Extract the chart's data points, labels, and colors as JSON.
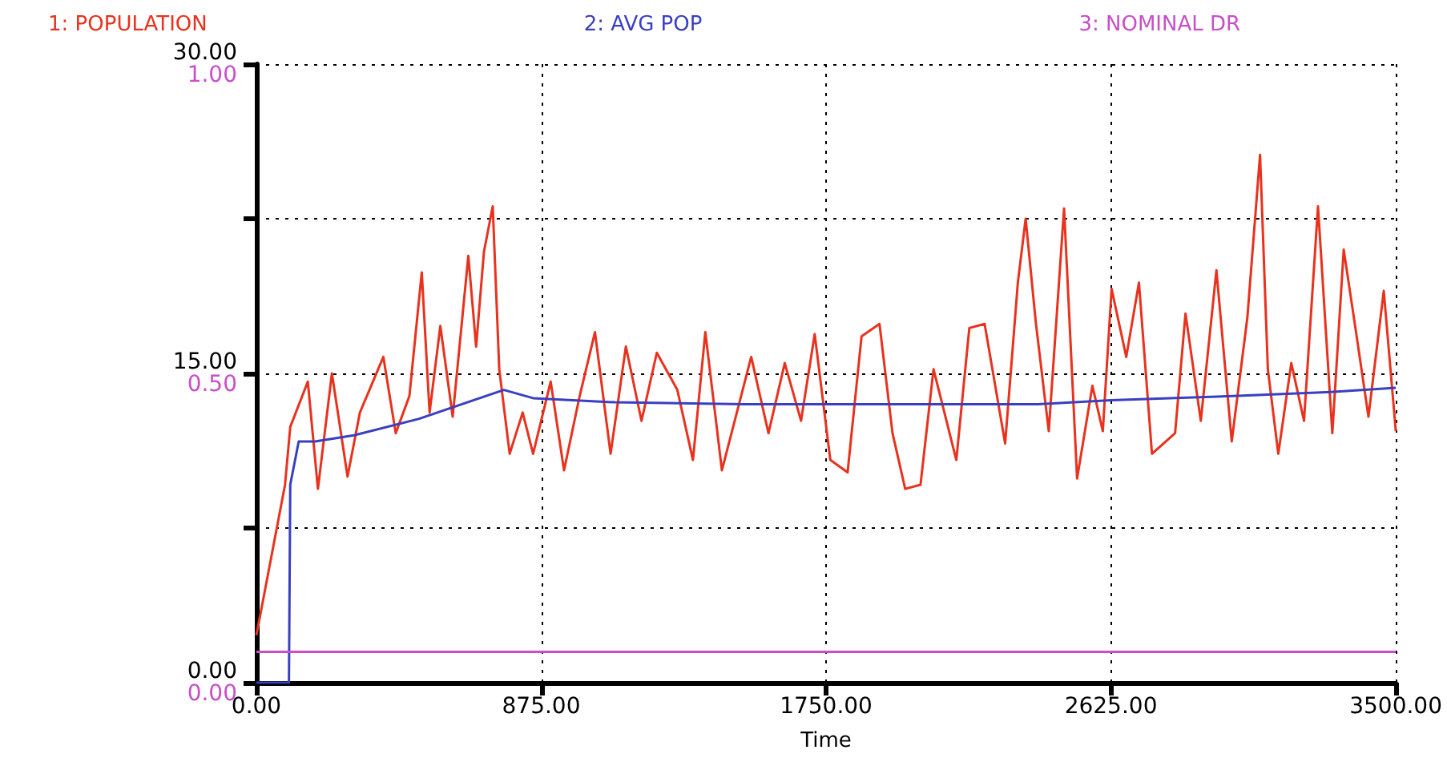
{
  "chart_data": {
    "type": "line",
    "xlabel": "Time",
    "legend": "top",
    "grid": true,
    "marker": "none",
    "line_style": "solid",
    "xlim": [
      0,
      3500
    ],
    "xticks": [
      {
        "value": 0,
        "label": "0.00"
      },
      {
        "value": 875,
        "label": "875.00"
      },
      {
        "value": 1750,
        "label": "1750.00"
      },
      {
        "value": 2625,
        "label": "2625.00"
      },
      {
        "value": 3500,
        "label": "3500.00"
      }
    ],
    "ylim": [
      0,
      30
    ],
    "yticks": [
      {
        "value": 0,
        "label": "0.00"
      },
      {
        "value": 7.5,
        "label": null
      },
      {
        "value": 15,
        "label": "15.00"
      },
      {
        "value": 22.5,
        "label": null
      },
      {
        "value": 30,
        "label": "30.00"
      }
    ],
    "y2lim": [
      0,
      1
    ],
    "y2ticks": [
      {
        "value": 0,
        "label": "0.00"
      },
      {
        "value": 0.5,
        "label": "0.50"
      },
      {
        "value": 1,
        "label": "1.00"
      }
    ],
    "series": [
      {
        "name": "1: POPULATION",
        "color": "#e8321e",
        "x": [
          0,
          88,
          104,
          158,
          189,
          232,
          280,
          318,
          390,
          428,
          470,
          508,
          532,
          565,
          603,
          651,
          675,
          699,
          726,
          746,
          778,
          818,
          850,
          904,
          945,
          993,
          1040,
          1088,
          1135,
          1183,
          1230,
          1293,
          1341,
          1379,
          1430,
          1520,
          1573,
          1623,
          1673,
          1715,
          1763,
          1816,
          1859,
          1914,
          1954,
          1993,
          2040,
          2080,
          2150,
          2190,
          2237,
          2300,
          2339,
          2363,
          2394,
          2434,
          2481,
          2521,
          2568,
          2600,
          2627,
          2672,
          2711,
          2751,
          2822,
          2854,
          2901,
          2949,
          2996,
          3044,
          3083,
          3107,
          3139,
          3179,
          3218,
          3261,
          3305,
          3340,
          3376,
          3416,
          3463,
          3500
        ],
        "values": [
          2.3,
          9.6,
          12.4,
          14.6,
          9.4,
          15.0,
          10.0,
          13.1,
          15.8,
          12.1,
          13.9,
          19.9,
          13.1,
          17.3,
          12.9,
          20.7,
          16.3,
          20.9,
          23.1,
          15.2,
          11.1,
          13.1,
          11.1,
          14.6,
          10.3,
          13.9,
          17.0,
          11.1,
          16.3,
          12.7,
          16.0,
          14.2,
          10.8,
          17.0,
          10.3,
          15.8,
          12.1,
          15.5,
          12.7,
          16.9,
          10.8,
          10.2,
          16.8,
          17.4,
          12.1,
          9.4,
          9.6,
          15.2,
          10.8,
          17.2,
          17.4,
          11.6,
          19.4,
          22.5,
          17.5,
          12.2,
          23.0,
          9.9,
          14.4,
          12.2,
          19.1,
          15.8,
          19.4,
          11.1,
          12.1,
          17.9,
          12.7,
          20.0,
          11.7,
          17.7,
          25.6,
          15.2,
          11.1,
          15.5,
          12.7,
          23.1,
          12.1,
          21.0,
          17.2,
          12.9,
          19.0,
          12.2
        ]
      },
      {
        "name": "2: AVG POP",
        "color": "#3a3fc0",
        "x": [
          0,
          100,
          104,
          130,
          180,
          300,
          500,
          760,
          850,
          1100,
          1500,
          2000,
          2400,
          2625,
          3000,
          3300,
          3500
        ],
        "values": [
          0,
          0,
          9.6,
          11.7,
          11.7,
          12.0,
          12.8,
          14.2,
          13.8,
          13.6,
          13.5,
          13.5,
          13.5,
          13.7,
          13.9,
          14.1,
          14.3
        ]
      },
      {
        "name": "3: NOMINAL DR",
        "color": "#c84fc8",
        "axis": "y2",
        "x": [
          0,
          3500
        ],
        "values": [
          0.05,
          0.05
        ]
      }
    ]
  }
}
